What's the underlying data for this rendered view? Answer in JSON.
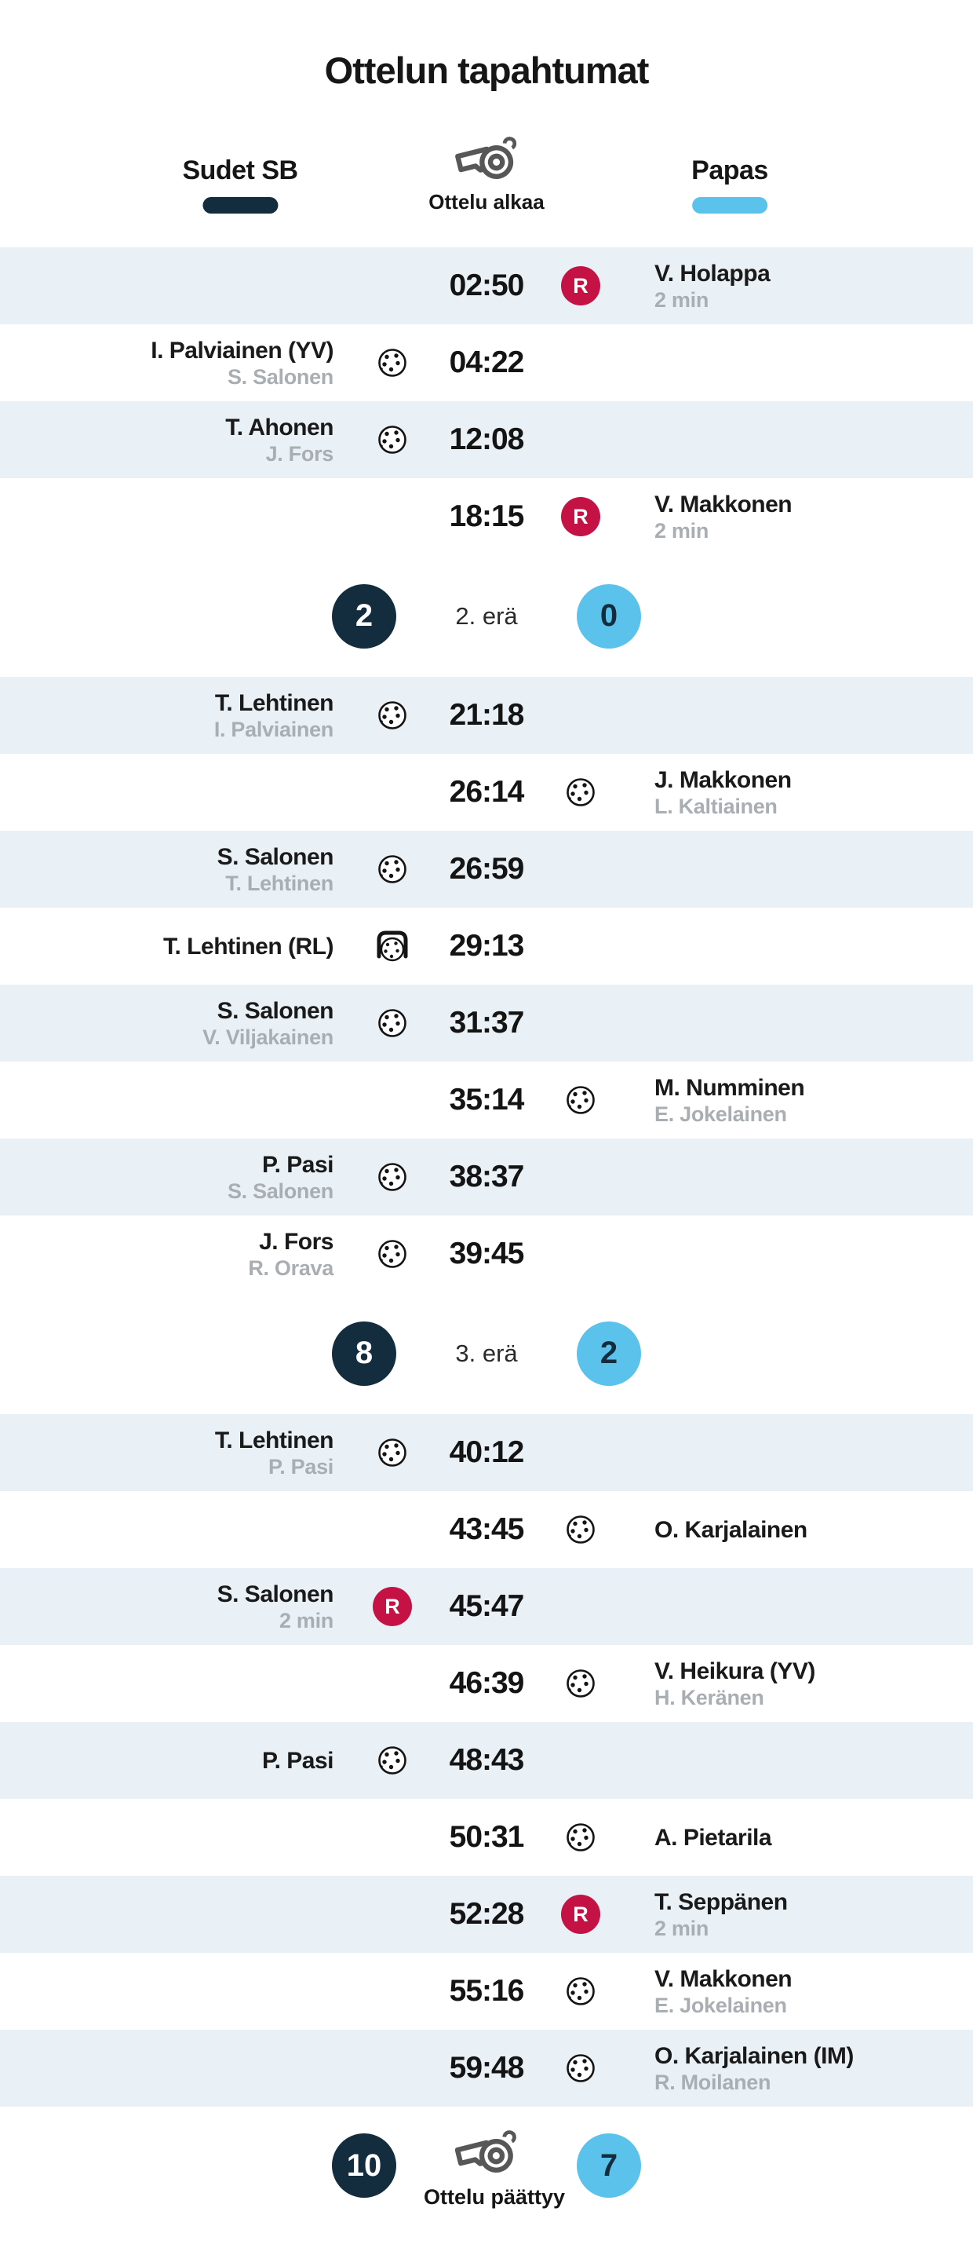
{
  "title": "Ottelun tapahtumat",
  "header": {
    "home_team": "Sudet SB",
    "away_team": "Papas",
    "start_label": "Ottelu alkaa"
  },
  "icons": {
    "start": "whistle-icon",
    "end": "whistle-icon",
    "goal": "floorball-icon",
    "penalty_shot_goal": "penalty-shot-goal-icon",
    "penalty": "penalty-icon",
    "penalty_letter": "R"
  },
  "colors": {
    "home": "#132C3E",
    "away": "#5BC2EB",
    "penalty": "#C41244",
    "row_shade": "#EAF1F6",
    "assist_gray": "#A9AEB3"
  },
  "events": [
    {
      "type": "penalty",
      "side": "away",
      "time": "02:50",
      "player": "V. Holappa",
      "detail": "2 min"
    },
    {
      "type": "goal",
      "side": "home",
      "time": "04:22",
      "player": "I. Palviainen (YV)",
      "assist": "S. Salonen"
    },
    {
      "type": "goal",
      "side": "home",
      "time": "12:08",
      "player": "T. Ahonen",
      "assist": "J. Fors"
    },
    {
      "type": "penalty",
      "side": "away",
      "time": "18:15",
      "player": "V. Makkonen",
      "detail": "2 min"
    },
    {
      "type": "period",
      "label": "2. erä",
      "home_score": "2",
      "away_score": "0"
    },
    {
      "type": "goal",
      "side": "home",
      "time": "21:18",
      "player": "T. Lehtinen",
      "assist": "I. Palviainen"
    },
    {
      "type": "goal",
      "side": "away",
      "time": "26:14",
      "player": "J. Makkonen",
      "assist": "L. Kaltiainen"
    },
    {
      "type": "goal",
      "side": "home",
      "time": "26:59",
      "player": "S. Salonen",
      "assist": "T. Lehtinen"
    },
    {
      "type": "penalty_shot_goal",
      "side": "home",
      "time": "29:13",
      "player": "T. Lehtinen (RL)"
    },
    {
      "type": "goal",
      "side": "home",
      "time": "31:37",
      "player": "S. Salonen",
      "assist": "V. Viljakainen"
    },
    {
      "type": "goal",
      "side": "away",
      "time": "35:14",
      "player": "M. Numminen",
      "assist": "E. Jokelainen"
    },
    {
      "type": "goal",
      "side": "home",
      "time": "38:37",
      "player": "P. Pasi",
      "assist": "S. Salonen"
    },
    {
      "type": "goal",
      "side": "home",
      "time": "39:45",
      "player": "J. Fors",
      "assist": "R. Orava"
    },
    {
      "type": "period",
      "label": "3. erä",
      "home_score": "8",
      "away_score": "2"
    },
    {
      "type": "goal",
      "side": "home",
      "time": "40:12",
      "player": "T. Lehtinen",
      "assist": "P. Pasi"
    },
    {
      "type": "goal",
      "side": "away",
      "time": "43:45",
      "player": "O. Karjalainen"
    },
    {
      "type": "penalty",
      "side": "home",
      "time": "45:47",
      "player": "S. Salonen",
      "detail": "2 min"
    },
    {
      "type": "goal",
      "side": "away",
      "time": "46:39",
      "player": "V. Heikura (YV)",
      "assist": "H. Keränen"
    },
    {
      "type": "goal",
      "side": "home",
      "time": "48:43",
      "player": "P. Pasi"
    },
    {
      "type": "goal",
      "side": "away",
      "time": "50:31",
      "player": "A. Pietarila"
    },
    {
      "type": "penalty",
      "side": "away",
      "time": "52:28",
      "player": "T. Seppänen",
      "detail": "2 min"
    },
    {
      "type": "goal",
      "side": "away",
      "time": "55:16",
      "player": "V. Makkonen",
      "assist": "E. Jokelainen"
    },
    {
      "type": "goal",
      "side": "away",
      "time": "59:48",
      "player": "O. Karjalainen (IM)",
      "assist": "R. Moilanen"
    }
  ],
  "footer": {
    "home_score": "10",
    "away_score": "7",
    "end_label": "Ottelu päättyy"
  }
}
